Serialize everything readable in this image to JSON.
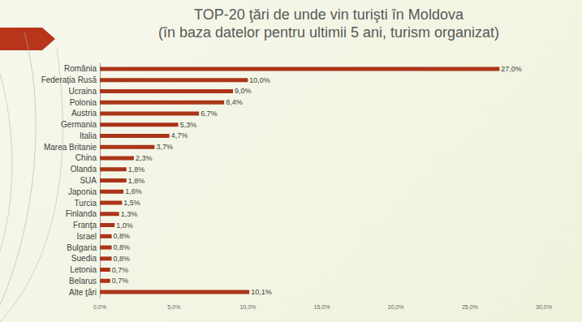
{
  "chart_data": {
    "type": "bar",
    "orientation": "horizontal",
    "title": "TOP-20 ţări de unde vin turişti în Moldova",
    "subtitle": "(în baza datelor pentru ultimii 5 ani, turism organizat)",
    "categories": [
      "România",
      "Federaţia Rusă",
      "Ucraina",
      "Polonia",
      "Austria",
      "Germania",
      "Italia",
      "Marea Britanie",
      "China",
      "Olanda",
      "SUA",
      "Japonia",
      "Turcia",
      "Finlanda",
      "Franţa",
      "Israel",
      "Bulgaria",
      "Suedia",
      "Letonia",
      "Belarus",
      "Alte ţări"
    ],
    "values": [
      27.0,
      10.0,
      9.0,
      8.4,
      6.7,
      5.3,
      4.7,
      3.7,
      2.3,
      1.8,
      1.8,
      1.6,
      1.5,
      1.3,
      1.0,
      0.8,
      0.8,
      0.8,
      0.7,
      0.7,
      10.1
    ],
    "value_labels": [
      "27,0%",
      "10,0%",
      "9,0%",
      "8,4%",
      "6,7%",
      "5,3%",
      "4,7%",
      "3,7%",
      "2,3%",
      "1,8%",
      "1,8%",
      "1,6%",
      "1,5%",
      "1,3%",
      "1,0%",
      "0,8%",
      "0,8%",
      "0,8%",
      "0,7%",
      "0,7%",
      "10,1%"
    ],
    "data_labels": true,
    "color": "#ab3519",
    "xlim": [
      0,
      30
    ],
    "xticks": [
      {
        "value": 0,
        "label": "0,0%"
      },
      {
        "value": 5,
        "label": "5,0%"
      },
      {
        "value": 10,
        "label": "10,0%"
      },
      {
        "value": 15,
        "label": "15,0%"
      },
      {
        "value": 20,
        "label": "20,0%"
      },
      {
        "value": 25,
        "label": "25,0%"
      },
      {
        "value": 30,
        "label": "30,0%"
      }
    ],
    "grid": false
  }
}
